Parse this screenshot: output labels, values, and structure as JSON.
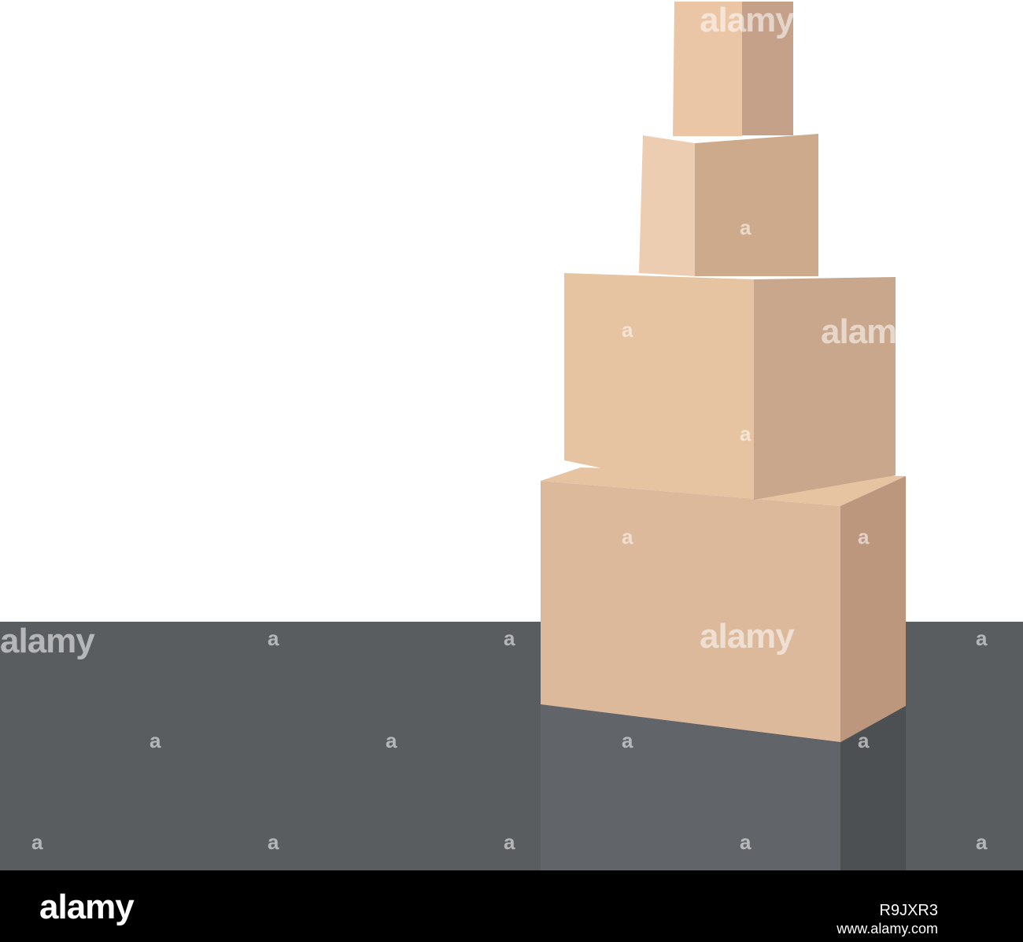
{
  "watermark": {
    "brand": "alamy",
    "letter": "a"
  },
  "footer": {
    "logo": "alamy",
    "image_id": "R9JXR3",
    "url": "www.alamy.com"
  },
  "colors": {
    "wall": "#ffffff",
    "floor": "#5a5d5f",
    "box_front": "#dcb99b",
    "box_side": "#bc977e",
    "footer_bar": "#000000"
  }
}
